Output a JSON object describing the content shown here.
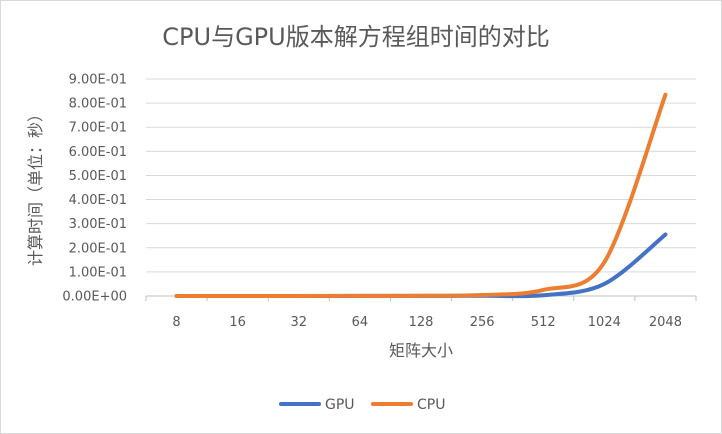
{
  "chart_data": {
    "type": "line",
    "title": "CPU与GPU版本解方程组时间的对比",
    "xlabel": "矩阵大小",
    "ylabel": "计算时间（单位：秒）",
    "categories": [
      "8",
      "16",
      "32",
      "64",
      "128",
      "256",
      "512",
      "1024",
      "2048"
    ],
    "y_tick_labels": [
      "0.00E+00",
      "1.00E-01",
      "2.00E-01",
      "3.00E-01",
      "4.00E-01",
      "5.00E-01",
      "6.00E-01",
      "7.00E-01",
      "8.00E-01",
      "9.00E-01"
    ],
    "ylim": [
      0,
      0.9
    ],
    "grid": true,
    "legend_position": "bottom",
    "series": [
      {
        "name": "GPU",
        "color": "#4472C4",
        "values": [
          0.0001,
          0.0001,
          0.0002,
          0.0003,
          0.0005,
          0.001,
          0.003,
          0.05,
          0.255
        ]
      },
      {
        "name": "CPU",
        "color": "#ED7D31",
        "values": [
          0.0001,
          0.0001,
          0.0002,
          0.0004,
          0.001,
          0.004,
          0.025,
          0.14,
          0.835
        ]
      }
    ]
  }
}
